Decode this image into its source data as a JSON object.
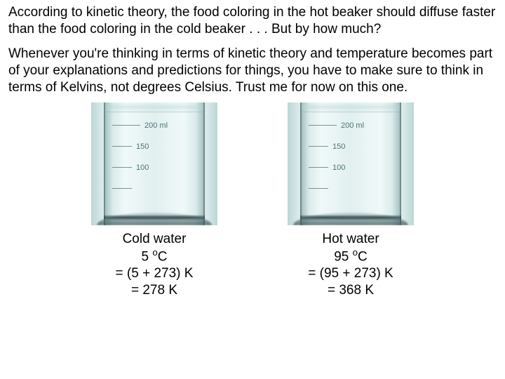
{
  "paragraph1": "According to kinetic theory, the food coloring in the hot beaker should diffuse faster than the food coloring in the cold beaker . . . But by how much?",
  "paragraph2": "Whenever you're thinking in terms of kinetic theory and temperature becomes part of your explanations and predictions for things, you have to make sure to think in terms of Kelvins, not degrees Celsius.  Trust me for now on this one.",
  "beaker_graphic": {
    "marks": [
      {
        "long": true,
        "label": "200 ml"
      },
      {
        "long": false,
        "label": "150"
      },
      {
        "long": false,
        "label": "100"
      },
      {
        "long": false,
        "label": ""
      }
    ],
    "colors": {
      "bg_light": "#e4efef",
      "bg_mid": "#d8e8e8",
      "bg_edge": "#bcd6d7",
      "mark_text": "#4a7073"
    }
  },
  "cold": {
    "title": "Cold water",
    "temp_c_value": "5 ",
    "temp_c_unit_sup": "o",
    "temp_c_unit": "C",
    "calc1": "= (5 + 273) K",
    "calc2": "= 278 K"
  },
  "hot": {
    "title": "Hot water",
    "temp_c_value": "95 ",
    "temp_c_unit_sup": "o",
    "temp_c_unit": "C",
    "calc1": "= (95 + 273) K",
    "calc2": "= 368 K"
  }
}
